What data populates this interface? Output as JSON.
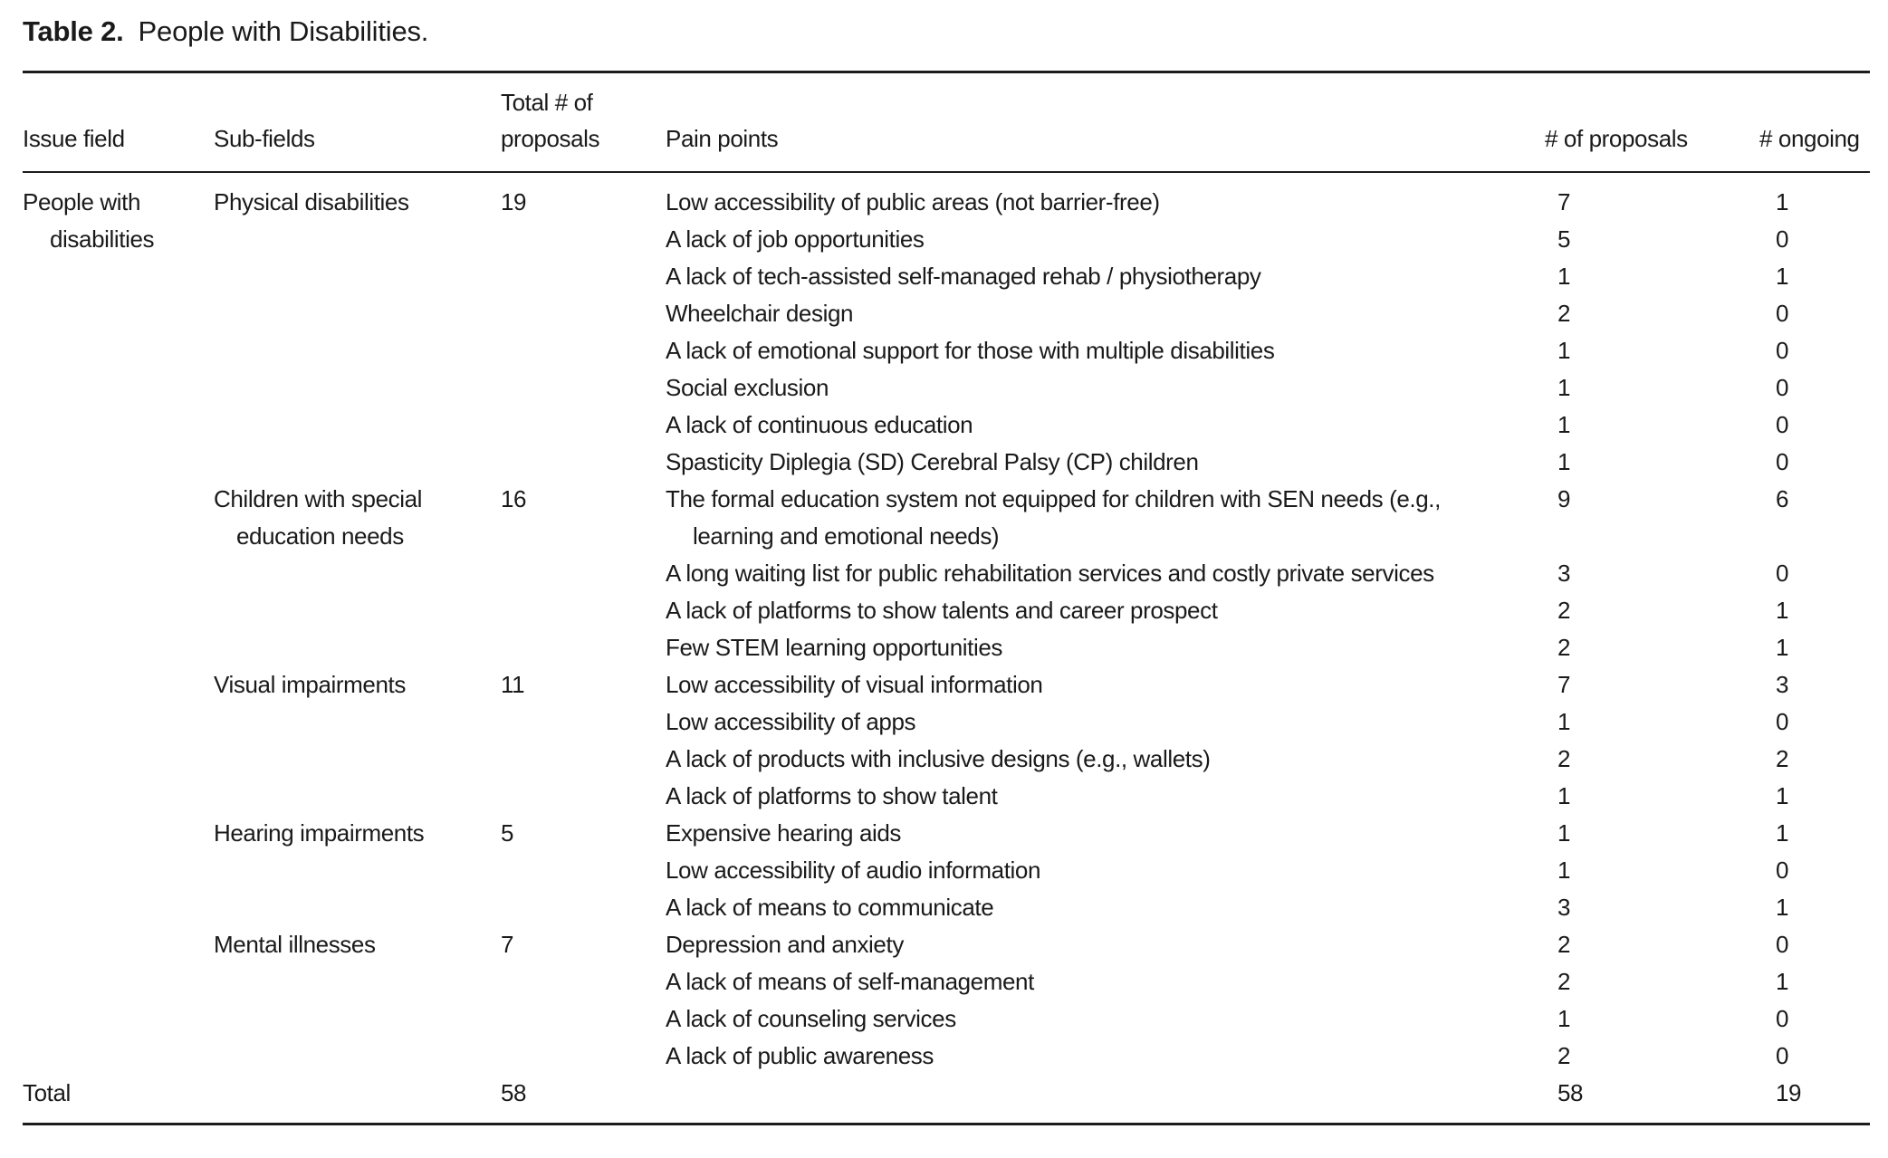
{
  "caption": {
    "label": "Table 2.",
    "text": "People with Disabilities."
  },
  "table": {
    "header": {
      "issue_field": "Issue field",
      "sub_fields": "Sub-fields",
      "total_proposals": "Total # of proposals",
      "pain_points": "Pain points",
      "num_proposals": "# of proposals",
      "num_ongoing": "# ongoing"
    },
    "issue_field": "People with disabilities",
    "groups": [
      {
        "sub_field": "Physical disabilities",
        "total": "19",
        "rows": [
          {
            "pain_point": "Low accessibility of public areas (not barrier-free)",
            "proposals": "7",
            "ongoing": "1"
          },
          {
            "pain_point": "A lack of job opportunities",
            "proposals": "5",
            "ongoing": "0"
          },
          {
            "pain_point": "A lack of tech-assisted self-managed rehab / physiotherapy",
            "proposals": "1",
            "ongoing": "1"
          },
          {
            "pain_point": "Wheelchair design",
            "proposals": "2",
            "ongoing": "0"
          },
          {
            "pain_point": "A lack of emotional support for those with multiple disabilities",
            "proposals": "1",
            "ongoing": "0"
          },
          {
            "pain_point": "Social exclusion",
            "proposals": "1",
            "ongoing": "0"
          },
          {
            "pain_point": "A lack of continuous education",
            "proposals": "1",
            "ongoing": "0"
          },
          {
            "pain_point": "Spasticity Diplegia (SD) Cerebral Palsy (CP) children",
            "proposals": "1",
            "ongoing": "0"
          }
        ]
      },
      {
        "sub_field": "Children with special education needs",
        "total": "16",
        "rows": [
          {
            "pain_point": "The formal education system not equipped for children with SEN needs (e.g.,\nlearning and emotional needs)",
            "proposals": "9",
            "ongoing": "6"
          },
          {
            "pain_point": "A long waiting list for public rehabilitation services and costly private services",
            "proposals": "3",
            "ongoing": "0"
          },
          {
            "pain_point": "A lack of platforms to show talents and career prospect",
            "proposals": "2",
            "ongoing": "1"
          },
          {
            "pain_point": "Few STEM learning opportunities",
            "proposals": "2",
            "ongoing": "1"
          }
        ]
      },
      {
        "sub_field": "Visual impairments",
        "total": "11",
        "rows": [
          {
            "pain_point": "Low accessibility of visual information",
            "proposals": "7",
            "ongoing": "3"
          },
          {
            "pain_point": "Low accessibility of apps",
            "proposals": "1",
            "ongoing": "0"
          },
          {
            "pain_point": "A lack of products with inclusive designs (e.g., wallets)",
            "proposals": "2",
            "ongoing": "2"
          },
          {
            "pain_point": "A lack of platforms to show talent",
            "proposals": "1",
            "ongoing": "1"
          }
        ]
      },
      {
        "sub_field": "Hearing impairments",
        "total": "5",
        "rows": [
          {
            "pain_point": "Expensive hearing aids",
            "proposals": "1",
            "ongoing": "1"
          },
          {
            "pain_point": "Low accessibility of audio information",
            "proposals": "1",
            "ongoing": "0"
          },
          {
            "pain_point": "A lack of means to communicate",
            "proposals": "3",
            "ongoing": "1"
          }
        ]
      },
      {
        "sub_field": "Mental illnesses",
        "total": "7",
        "rows": [
          {
            "pain_point": "Depression and anxiety",
            "proposals": "2",
            "ongoing": "0"
          },
          {
            "pain_point": "A lack of means of self-management",
            "proposals": "2",
            "ongoing": "1"
          },
          {
            "pain_point": "A lack of counseling services",
            "proposals": "1",
            "ongoing": "0"
          },
          {
            "pain_point": "A lack of public awareness",
            "proposals": "2",
            "ongoing": "0"
          }
        ]
      }
    ],
    "total_row": {
      "label": "Total",
      "total": "58",
      "proposals": "58",
      "ongoing": "19"
    }
  }
}
